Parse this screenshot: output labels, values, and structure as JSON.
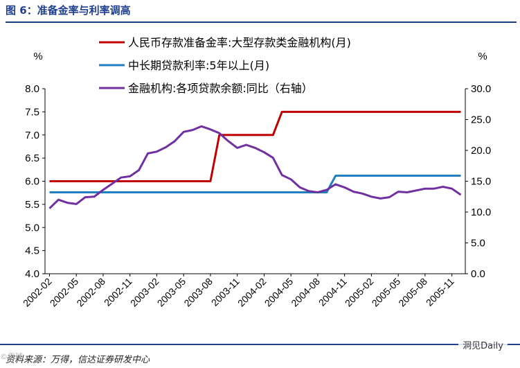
{
  "figure": {
    "title": "图 6：准备金率与利率调高",
    "source": "资料来源：万得，信达证券研发中心",
    "watermark": "洞见Daily",
    "corner_watermark": "©雪球"
  },
  "chart_data": {
    "type": "line",
    "x_categories": [
      "2002-02",
      "2002-05",
      "2002-08",
      "2002-11",
      "2003-02",
      "2003-05",
      "2003-08",
      "2003-11",
      "2004-02",
      "2004-05",
      "2004-08",
      "2004-11",
      "2005-02",
      "2005-05",
      "2005-08",
      "2005-11"
    ],
    "y_left": {
      "unit": "%",
      "range": [
        4.0,
        8.0
      ],
      "ticks": [
        "4.0",
        "4.5",
        "5.0",
        "5.5",
        "6.0",
        "6.5",
        "7.0",
        "7.5",
        "8.0"
      ]
    },
    "y_right": {
      "unit": "%",
      "range": [
        0.0,
        30.0
      ],
      "ticks": [
        "0.0",
        "5.0",
        "10.0",
        "15.0",
        "20.0",
        "25.0",
        "30.0"
      ]
    },
    "legend_position": "top",
    "series": [
      {
        "name": "人民币存款准备金率:大型存款类金融机构(月)",
        "axis": "left",
        "color": "#c00000",
        "x": [
          "2002-02",
          "2002-03",
          "2002-04",
          "2002-05",
          "2002-06",
          "2002-07",
          "2002-08",
          "2002-09",
          "2002-10",
          "2002-11",
          "2002-12",
          "2003-01",
          "2003-02",
          "2003-03",
          "2003-04",
          "2003-05",
          "2003-06",
          "2003-07",
          "2003-08",
          "2003-09",
          "2003-10",
          "2003-11",
          "2003-12",
          "2004-01",
          "2004-02",
          "2004-03",
          "2004-04",
          "2004-05",
          "2004-06",
          "2004-07",
          "2004-08",
          "2004-09",
          "2004-10",
          "2004-11",
          "2004-12",
          "2005-01",
          "2005-02",
          "2005-03",
          "2005-04",
          "2005-05",
          "2005-06",
          "2005-07",
          "2005-08",
          "2005-09",
          "2005-10",
          "2005-11",
          "2005-12"
        ],
        "values": [
          6.0,
          6.0,
          6.0,
          6.0,
          6.0,
          6.0,
          6.0,
          6.0,
          6.0,
          6.0,
          6.0,
          6.0,
          6.0,
          6.0,
          6.0,
          6.0,
          6.0,
          6.0,
          6.0,
          7.0,
          7.0,
          7.0,
          7.0,
          7.0,
          7.0,
          7.0,
          7.5,
          7.5,
          7.5,
          7.5,
          7.5,
          7.5,
          7.5,
          7.5,
          7.5,
          7.5,
          7.5,
          7.5,
          7.5,
          7.5,
          7.5,
          7.5,
          7.5,
          7.5,
          7.5,
          7.5,
          7.5
        ]
      },
      {
        "name": "中长期贷款利率:5年以上(月)",
        "axis": "left",
        "color": "#1f7fc0",
        "x": [
          "2002-02",
          "2002-03",
          "2002-04",
          "2002-05",
          "2002-06",
          "2002-07",
          "2002-08",
          "2002-09",
          "2002-10",
          "2002-11",
          "2002-12",
          "2003-01",
          "2003-02",
          "2003-03",
          "2003-04",
          "2003-05",
          "2003-06",
          "2003-07",
          "2003-08",
          "2003-09",
          "2003-10",
          "2003-11",
          "2003-12",
          "2004-01",
          "2004-02",
          "2004-03",
          "2004-04",
          "2004-05",
          "2004-06",
          "2004-07",
          "2004-08",
          "2004-09",
          "2004-10",
          "2004-11",
          "2004-12",
          "2005-01",
          "2005-02",
          "2005-03",
          "2005-04",
          "2005-05",
          "2005-06",
          "2005-07",
          "2005-08",
          "2005-09",
          "2005-10",
          "2005-11",
          "2005-12"
        ],
        "values": [
          5.76,
          5.76,
          5.76,
          5.76,
          5.76,
          5.76,
          5.76,
          5.76,
          5.76,
          5.76,
          5.76,
          5.76,
          5.76,
          5.76,
          5.76,
          5.76,
          5.76,
          5.76,
          5.76,
          5.76,
          5.76,
          5.76,
          5.76,
          5.76,
          5.76,
          5.76,
          5.76,
          5.76,
          5.76,
          5.76,
          5.76,
          5.76,
          6.12,
          6.12,
          6.12,
          6.12,
          6.12,
          6.12,
          6.12,
          6.12,
          6.12,
          6.12,
          6.12,
          6.12,
          6.12,
          6.12,
          6.12
        ]
      },
      {
        "name": "金融机构:各项贷款余额:同比（右轴）",
        "axis": "right",
        "color": "#7030a0",
        "x": [
          "2002-02",
          "2002-03",
          "2002-04",
          "2002-05",
          "2002-06",
          "2002-07",
          "2002-08",
          "2002-09",
          "2002-10",
          "2002-11",
          "2002-12",
          "2003-01",
          "2003-02",
          "2003-03",
          "2003-04",
          "2003-05",
          "2003-06",
          "2003-07",
          "2003-08",
          "2003-09",
          "2003-10",
          "2003-11",
          "2003-12",
          "2004-01",
          "2004-02",
          "2004-03",
          "2004-04",
          "2004-05",
          "2004-06",
          "2004-07",
          "2004-08",
          "2004-09",
          "2004-10",
          "2004-11",
          "2004-12",
          "2005-01",
          "2005-02",
          "2005-03",
          "2005-04",
          "2005-05",
          "2005-06",
          "2005-07",
          "2005-08",
          "2005-09",
          "2005-10",
          "2005-11",
          "2005-12"
        ],
        "values": [
          10.6,
          12.0,
          11.5,
          11.3,
          12.4,
          12.5,
          13.6,
          14.6,
          15.6,
          15.8,
          16.8,
          19.5,
          19.8,
          20.5,
          21.5,
          23.0,
          23.3,
          23.9,
          23.4,
          22.8,
          21.5,
          20.4,
          20.9,
          20.4,
          19.7,
          18.8,
          16.0,
          15.3,
          14.0,
          13.4,
          13.2,
          13.6,
          14.5,
          14.0,
          13.3,
          13.0,
          12.5,
          12.2,
          12.4,
          13.3,
          13.2,
          13.5,
          13.8,
          13.8,
          14.1,
          13.8,
          12.8
        ]
      }
    ]
  }
}
